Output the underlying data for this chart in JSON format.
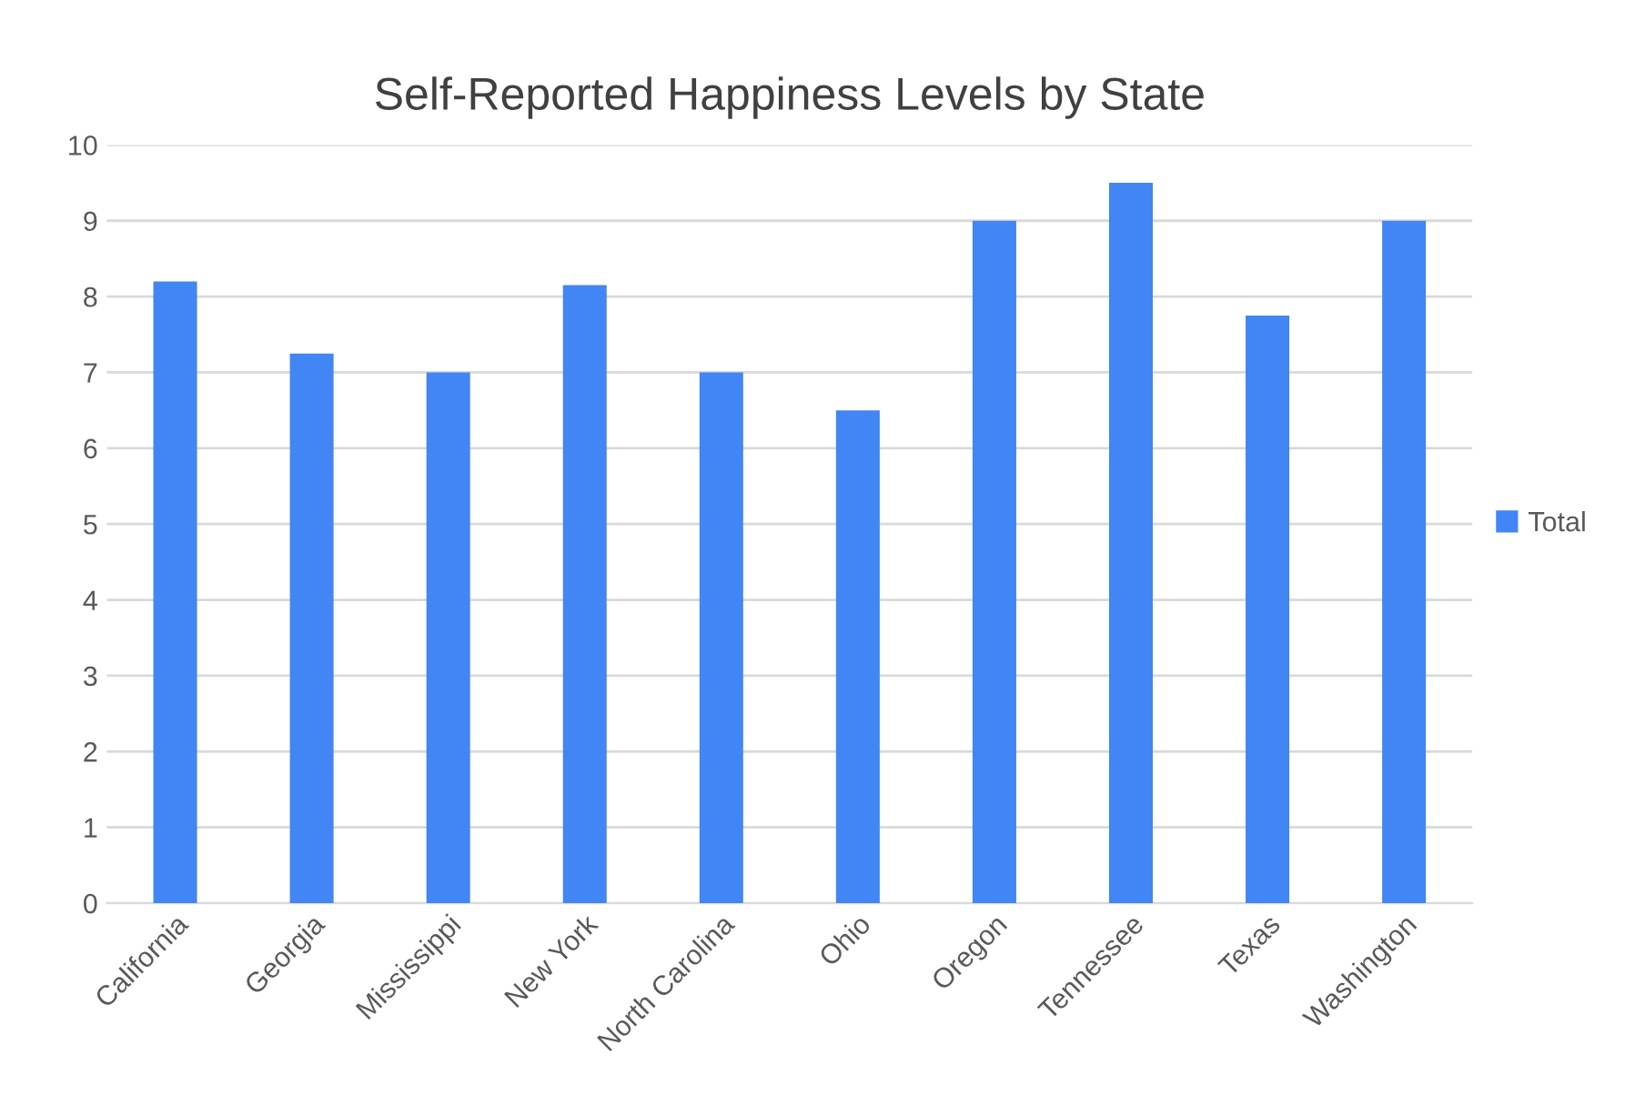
{
  "chart_data": {
    "type": "bar",
    "title": "Self-Reported Happiness Levels by State",
    "categories": [
      "California",
      "Georgia",
      "Mississippi",
      "New York",
      "North Carolina",
      "Ohio",
      "Oregon",
      "Tennessee",
      "Texas",
      "Washington"
    ],
    "series": [
      {
        "name": "Total",
        "color": "#4285f4",
        "values": [
          8.2,
          7.25,
          7,
          8.15,
          7,
          6.5,
          9,
          9.5,
          7.75,
          9
        ]
      }
    ],
    "ylim": [
      0,
      10
    ],
    "yticks": [
      0,
      1,
      2,
      3,
      4,
      5,
      6,
      7,
      8,
      9,
      10
    ],
    "grid": "y",
    "legend": "right"
  }
}
